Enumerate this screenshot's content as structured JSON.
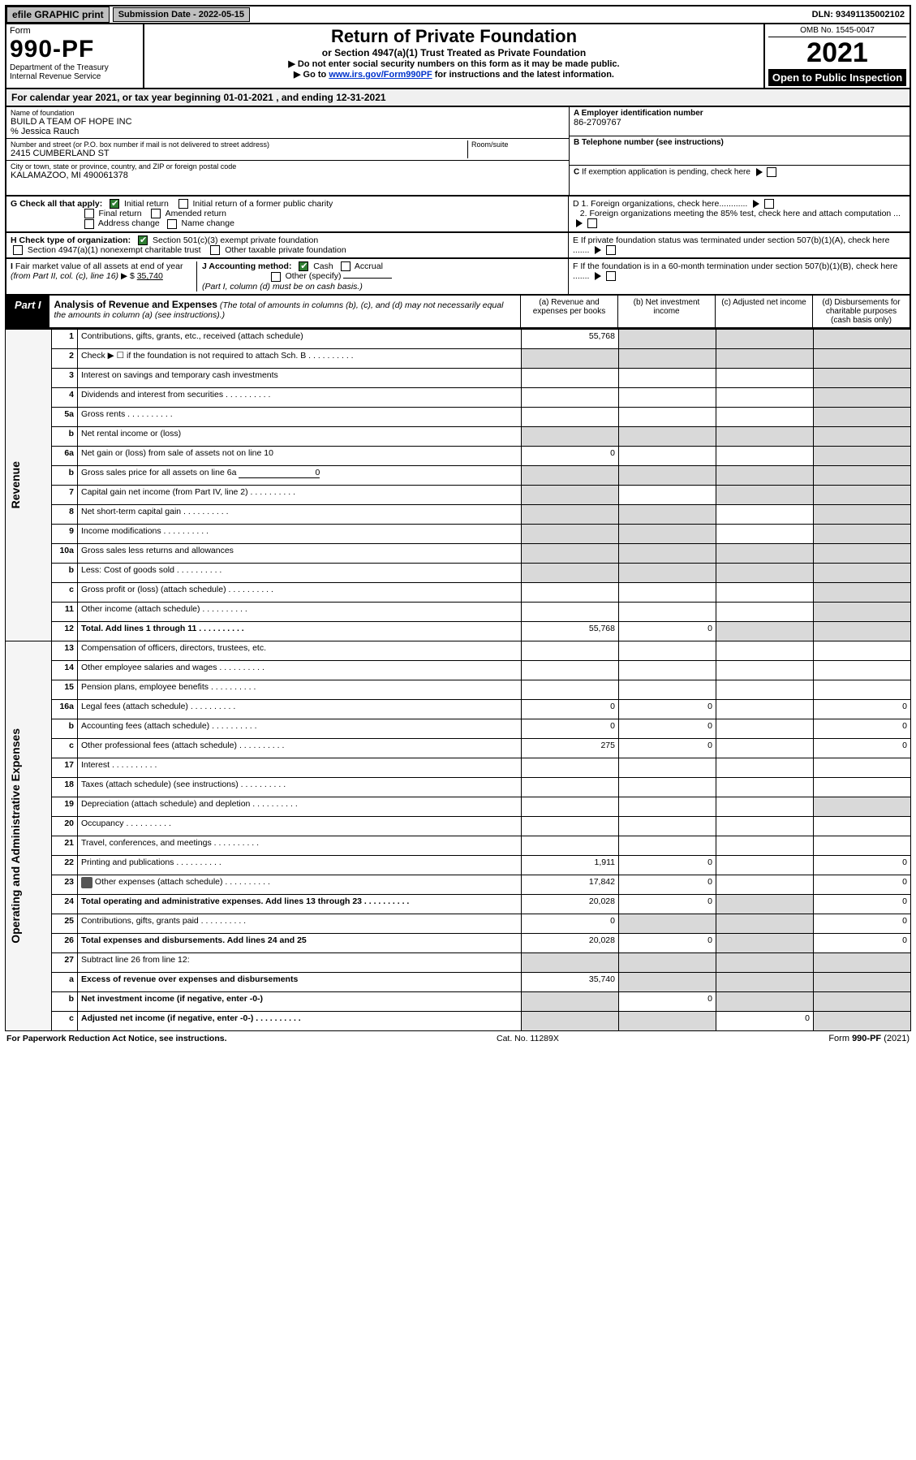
{
  "topbar": {
    "efile_label": "efile GRAPHIC print",
    "submission_label": "Submission Date - 2022-05-15",
    "dln": "DLN: 93491135002102"
  },
  "header": {
    "form_word": "Form",
    "form_number": "990-PF",
    "dept": "Department of the Treasury",
    "irs": "Internal Revenue Service",
    "title": "Return of Private Foundation",
    "subtitle": "or Section 4947(a)(1) Trust Treated as Private Foundation",
    "note1": "▶ Do not enter social security numbers on this form as it may be made public.",
    "note2_prefix": "▶ Go to ",
    "note2_link": "www.irs.gov/Form990PF",
    "note2_suffix": " for instructions and the latest information.",
    "omb": "OMB No. 1545-0047",
    "year": "2021",
    "inspect": "Open to Public Inspection"
  },
  "calyear": {
    "prefix": "For calendar year 2021, or tax year beginning ",
    "begin": "01-01-2021",
    "mid": " , and ending ",
    "end": "12-31-2021"
  },
  "ident": {
    "name_lbl": "Name of foundation",
    "name": "BUILD A TEAM OF HOPE INC",
    "co": "% Jessica Rauch",
    "street_lbl": "Number and street (or P.O. box number if mail is not delivered to street address)",
    "street": "2415 CUMBERLAND ST",
    "room_lbl": "Room/suite",
    "city_lbl": "City or town, state or province, country, and ZIP or foreign postal code",
    "city": "KALAMAZOO, MI  490061378",
    "A_lbl": "A Employer identification number",
    "A_val": "86-2709767",
    "B_lbl": "B Telephone number (see instructions)",
    "C_lbl": "C If exemption application is pending, check here"
  },
  "G": {
    "label": "G Check all that apply:",
    "initial": "Initial return",
    "initial_former": "Initial return of a former public charity",
    "final": "Final return",
    "amended": "Amended return",
    "address": "Address change",
    "namechg": "Name change"
  },
  "D": {
    "d1": "D 1. Foreign organizations, check here............",
    "d2": "2. Foreign organizations meeting the 85% test, check here and attach computation ..."
  },
  "H": {
    "label": "H Check type of organization:",
    "opt1": "Section 501(c)(3) exempt private foundation",
    "opt2": "Section 4947(a)(1) nonexempt charitable trust",
    "opt3": "Other taxable private foundation"
  },
  "E": "E  If private foundation status was terminated under section 507(b)(1)(A), check here .......",
  "I": {
    "label": "I Fair market value of all assets at end of year (from Part II, col. (c), line 16) ▶ $",
    "value": "35,740"
  },
  "J": {
    "label": "J Accounting method:",
    "cash": "Cash",
    "accrual": "Accrual",
    "other": "Other (specify)",
    "note": "(Part I, column (d) must be on cash basis.)"
  },
  "F": "F  If the foundation is in a 60-month termination under section 507(b)(1)(B), check here .......",
  "part1": {
    "tag": "Part I",
    "title": "Analysis of Revenue and Expenses",
    "paren": " (The total of amounts in columns (b), (c), and (d) may not necessarily equal the amounts in column (a) (see instructions).)",
    "colA": "(a) Revenue and expenses per books",
    "colB": "(b) Net investment income",
    "colC": "(c) Adjusted net income",
    "colD": "(d) Disbursements for charitable purposes (cash basis only)"
  },
  "side": {
    "revenue": "Revenue",
    "expenses": "Operating and Administrative Expenses"
  },
  "rows": [
    {
      "n": "1",
      "t": "Contributions, gifts, grants, etc., received (attach schedule)",
      "a": "55,768"
    },
    {
      "n": "2",
      "t": "Check ▶ ☐ if the foundation is not required to attach Sch. B",
      "dots": true
    },
    {
      "n": "3",
      "t": "Interest on savings and temporary cash investments"
    },
    {
      "n": "4",
      "t": "Dividends and interest from securities",
      "dots": true
    },
    {
      "n": "5a",
      "t": "Gross rents",
      "dots": true
    },
    {
      "n": "b",
      "t": "Net rental income or (loss)"
    },
    {
      "n": "6a",
      "t": "Net gain or (loss) from sale of assets not on line 10",
      "a": "0"
    },
    {
      "n": "b",
      "t": "Gross sales price for all assets on line 6a",
      "inline": "0"
    },
    {
      "n": "7",
      "t": "Capital gain net income (from Part IV, line 2)",
      "dots": true
    },
    {
      "n": "8",
      "t": "Net short-term capital gain",
      "dots": true
    },
    {
      "n": "9",
      "t": "Income modifications",
      "dots": true
    },
    {
      "n": "10a",
      "t": "Gross sales less returns and allowances"
    },
    {
      "n": "b",
      "t": "Less: Cost of goods sold",
      "dots": true
    },
    {
      "n": "c",
      "t": "Gross profit or (loss) (attach schedule)",
      "dots": true
    },
    {
      "n": "11",
      "t": "Other income (attach schedule)",
      "dots": true
    },
    {
      "n": "12",
      "t": "Total. Add lines 1 through 11",
      "dots": true,
      "bold": true,
      "a": "55,768",
      "b": "0"
    },
    {
      "n": "13",
      "t": "Compensation of officers, directors, trustees, etc."
    },
    {
      "n": "14",
      "t": "Other employee salaries and wages",
      "dots": true
    },
    {
      "n": "15",
      "t": "Pension plans, employee benefits",
      "dots": true
    },
    {
      "n": "16a",
      "t": "Legal fees (attach schedule)",
      "dots": true,
      "a": "0",
      "b": "0",
      "d": "0"
    },
    {
      "n": "b",
      "t": "Accounting fees (attach schedule)",
      "dots": true,
      "a": "0",
      "b": "0",
      "d": "0"
    },
    {
      "n": "c",
      "t": "Other professional fees (attach schedule)",
      "dots": true,
      "a": "275",
      "b": "0",
      "d": "0"
    },
    {
      "n": "17",
      "t": "Interest",
      "dots": true
    },
    {
      "n": "18",
      "t": "Taxes (attach schedule) (see instructions)",
      "dots": true
    },
    {
      "n": "19",
      "t": "Depreciation (attach schedule) and depletion",
      "dots": true
    },
    {
      "n": "20",
      "t": "Occupancy",
      "dots": true
    },
    {
      "n": "21",
      "t": "Travel, conferences, and meetings",
      "dots": true
    },
    {
      "n": "22",
      "t": "Printing and publications",
      "dots": true,
      "a": "1,911",
      "b": "0",
      "d": "0"
    },
    {
      "n": "23",
      "t": "Other expenses (attach schedule)",
      "dots": true,
      "icon": true,
      "a": "17,842",
      "b": "0",
      "d": "0"
    },
    {
      "n": "24",
      "t": "Total operating and administrative expenses. Add lines 13 through 23",
      "dots": true,
      "bold": true,
      "a": "20,028",
      "b": "0",
      "d": "0"
    },
    {
      "n": "25",
      "t": "Contributions, gifts, grants paid",
      "dots": true,
      "a": "0",
      "d": "0"
    },
    {
      "n": "26",
      "t": "Total expenses and disbursements. Add lines 24 and 25",
      "bold": true,
      "a": "20,028",
      "b": "0",
      "d": "0"
    },
    {
      "n": "27",
      "t": "Subtract line 26 from line 12:"
    },
    {
      "n": "a",
      "t": "Excess of revenue over expenses and disbursements",
      "bold": true,
      "a": "35,740"
    },
    {
      "n": "b",
      "t": "Net investment income (if negative, enter -0-)",
      "bold": true,
      "b": "0"
    },
    {
      "n": "c",
      "t": "Adjusted net income (if negative, enter -0-)",
      "dots": true,
      "bold": true,
      "c": "0"
    }
  ],
  "footer": {
    "left": "For Paperwork Reduction Act Notice, see instructions.",
    "mid": "Cat. No. 11289X",
    "right": "Form 990-PF (2021)"
  }
}
